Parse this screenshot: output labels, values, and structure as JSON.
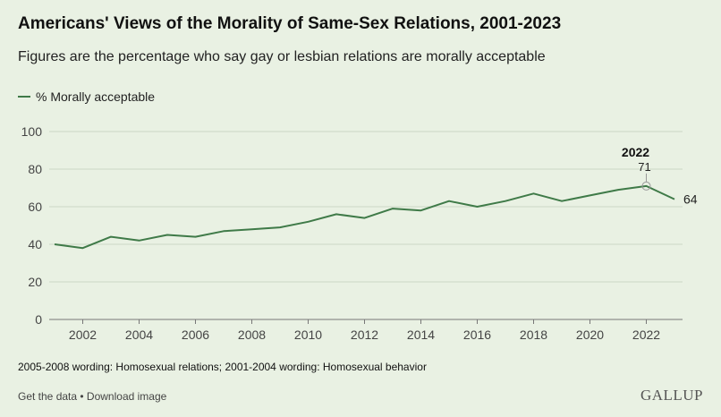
{
  "chart_data": {
    "type": "line",
    "title": "Americans' Views of the Morality of Same-Sex Relations, 2001-2023",
    "subtitle": "Figures are the percentage who say gay or lesbian relations are morally acceptable",
    "x": [
      2001,
      2002,
      2003,
      2004,
      2005,
      2006,
      2007,
      2008,
      2009,
      2010,
      2011,
      2012,
      2013,
      2014,
      2015,
      2016,
      2017,
      2018,
      2019,
      2020,
      2021,
      2022,
      2023
    ],
    "series": [
      {
        "name": "% Morally acceptable",
        "color": "#3f7a48",
        "values": [
          40,
          38,
          44,
          42,
          45,
          44,
          47,
          48,
          49,
          52,
          56,
          54,
          59,
          58,
          63,
          60,
          63,
          67,
          63,
          66,
          69,
          71,
          64
        ]
      }
    ],
    "xticks": [
      "2002",
      "2004",
      "2006",
      "2008",
      "2010",
      "2012",
      "2014",
      "2016",
      "2018",
      "2020",
      "2022"
    ],
    "yticks": [
      "0",
      "20",
      "40",
      "60",
      "80",
      "100"
    ],
    "ylim": [
      0,
      100
    ],
    "xlim": [
      2001,
      2023
    ],
    "grid": "horizontal",
    "legend": "top-left",
    "annotations": {
      "highlight_year": "2022",
      "highlight_value": "71",
      "last_value": "64"
    }
  },
  "footnote": "2005-2008 wording: Homosexual relations; 2001-2004 wording: Homosexual behavior",
  "footer": {
    "get_data": "Get the data",
    "separator": " • ",
    "download": "Download image",
    "logo": "GALLUP"
  }
}
